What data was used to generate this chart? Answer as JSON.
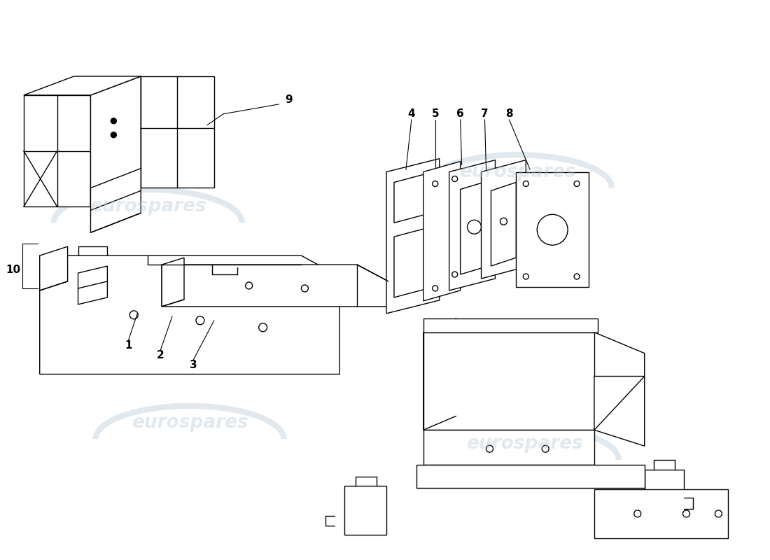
{
  "background_color": "#ffffff",
  "line_color": "#000000",
  "watermark_text": "eurospares",
  "watermark_color": "#b8cad6",
  "watermark_alpha": 0.4,
  "lw": 1.0,
  "label_fs": 11
}
